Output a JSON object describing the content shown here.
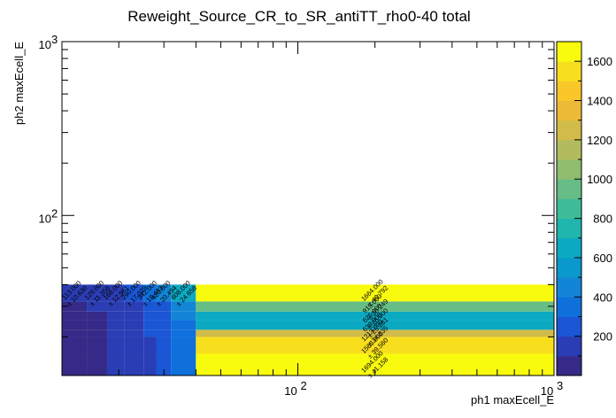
{
  "chart_data": {
    "type": "heatmap",
    "title": "Reweight_Source_CR_to_SR_antiTT_rho0-40 total",
    "xlabel": "ph1 maxEcell_E",
    "ylabel": "ph2 maxEcell_E",
    "x_scale": "log",
    "y_scale": "log",
    "xlim": [
      12,
      1000
    ],
    "ylim": [
      12,
      1000
    ],
    "x_ticks": [
      {
        "value": 100,
        "base": "10",
        "exp": "2"
      },
      {
        "value": 1000,
        "base": "10",
        "exp": "3"
      }
    ],
    "y_ticks": [
      {
        "value": 100,
        "base": "10",
        "exp": "2"
      },
      {
        "value": 1000,
        "base": "10",
        "exp": "3"
      }
    ],
    "x_bin_edges": [
      12,
      15,
      18,
      21,
      25,
      28,
      32,
      40,
      1000
    ],
    "y_bin_edges": [
      12,
      16,
      20,
      22,
      25,
      28,
      32,
      40,
      1000
    ],
    "values": [
      [
        40,
        70,
        100,
        130,
        170,
        220,
        300,
        1694
      ],
      [
        45,
        80,
        110,
        150,
        190,
        250,
        330,
        1563
      ],
      [
        50,
        85,
        120,
        160,
        200,
        260,
        350,
        1213
      ],
      [
        55,
        90,
        130,
        170,
        210,
        270,
        380,
        639
      ],
      [
        60,
        95,
        135,
        175,
        215,
        280,
        400,
        625
      ],
      [
        65,
        100,
        140,
        180,
        220,
        290,
        410,
        915
      ],
      [
        113,
        129,
        168,
        290,
        342,
        420,
        608,
        1664
      ]
    ],
    "cell_labels": [
      [
        {
          "v": "",
          "e": ""
        },
        {
          "v": "",
          "e": ""
        },
        {
          "v": "",
          "e": ""
        },
        {
          "v": "",
          "e": ""
        },
        {
          "v": "",
          "e": ""
        },
        {
          "v": "",
          "e": ""
        },
        {
          "v": "",
          "e": ""
        },
        {
          "v": "1694.000",
          "e": "± 41.158"
        }
      ],
      [
        {
          "v": "",
          "e": ""
        },
        {
          "v": "",
          "e": ""
        },
        {
          "v": "",
          "e": ""
        },
        {
          "v": "",
          "e": ""
        },
        {
          "v": "",
          "e": ""
        },
        {
          "v": "",
          "e": ""
        },
        {
          "v": "",
          "e": ""
        },
        {
          "v": "1563.000",
          "e": "± 39.560"
        }
      ],
      [
        {
          "v": "",
          "e": ""
        },
        {
          "v": "",
          "e": ""
        },
        {
          "v": "",
          "e": ""
        },
        {
          "v": "",
          "e": ""
        },
        {
          "v": "",
          "e": ""
        },
        {
          "v": "",
          "e": ""
        },
        {
          "v": "",
          "e": ""
        },
        {
          "v": "1213.000",
          "e": "± 34.835"
        }
      ],
      [
        {
          "v": "",
          "e": ""
        },
        {
          "v": "",
          "e": ""
        },
        {
          "v": "",
          "e": ""
        },
        {
          "v": "",
          "e": ""
        },
        {
          "v": "",
          "e": ""
        },
        {
          "v": "",
          "e": ""
        },
        {
          "v": "",
          "e": ""
        },
        {
          "v": "639.000",
          "e": "± 25.281"
        }
      ],
      [
        {
          "v": "",
          "e": ""
        },
        {
          "v": "",
          "e": ""
        },
        {
          "v": "",
          "e": ""
        },
        {
          "v": "",
          "e": ""
        },
        {
          "v": "",
          "e": ""
        },
        {
          "v": "",
          "e": ""
        },
        {
          "v": "",
          "e": ""
        },
        {
          "v": "625.000",
          "e": "± 25.000"
        }
      ],
      [
        {
          "v": "",
          "e": ""
        },
        {
          "v": "",
          "e": ""
        },
        {
          "v": "",
          "e": ""
        },
        {
          "v": "",
          "e": ""
        },
        {
          "v": "",
          "e": ""
        },
        {
          "v": "",
          "e": ""
        },
        {
          "v": "",
          "e": ""
        },
        {
          "v": "915.000",
          "e": "± 30.249"
        }
      ],
      [
        {
          "v": "113.000",
          "e": "± 10.630"
        },
        {
          "v": "129.000",
          "e": "± 11.358"
        },
        {
          "v": "168.000",
          "e": "± 12.961"
        },
        {
          "v": "290.000",
          "e": "± 17.029"
        },
        {
          "v": "342.000",
          "e": "± 18.493"
        },
        {
          "v": "420.000",
          "e": "± 20.494"
        },
        {
          "v": "608.000",
          "e": "± 24.658"
        },
        {
          "v": "1664.000",
          "e": "± 40.792"
        }
      ]
    ],
    "z_range": [
      0,
      1700
    ],
    "z_ticks": [
      200,
      400,
      600,
      800,
      1000,
      1200,
      1400,
      1600
    ],
    "z_tick_labels": [
      "200",
      "400",
      "600",
      "800",
      "1000",
      "1200",
      "1400",
      "1600"
    ],
    "palette": [
      "#352a87",
      "#2a3db4",
      "#1a56d5",
      "#0f70dc",
      "#1385d6",
      "#0b98cd",
      "#0ca9c2",
      "#20b5ad",
      "#3ebc9a",
      "#66bd85",
      "#8fbd70",
      "#b2bc5e",
      "#d1bb49",
      "#ecba37",
      "#fac72a",
      "#f8df1d",
      "#f9fb0e"
    ]
  }
}
